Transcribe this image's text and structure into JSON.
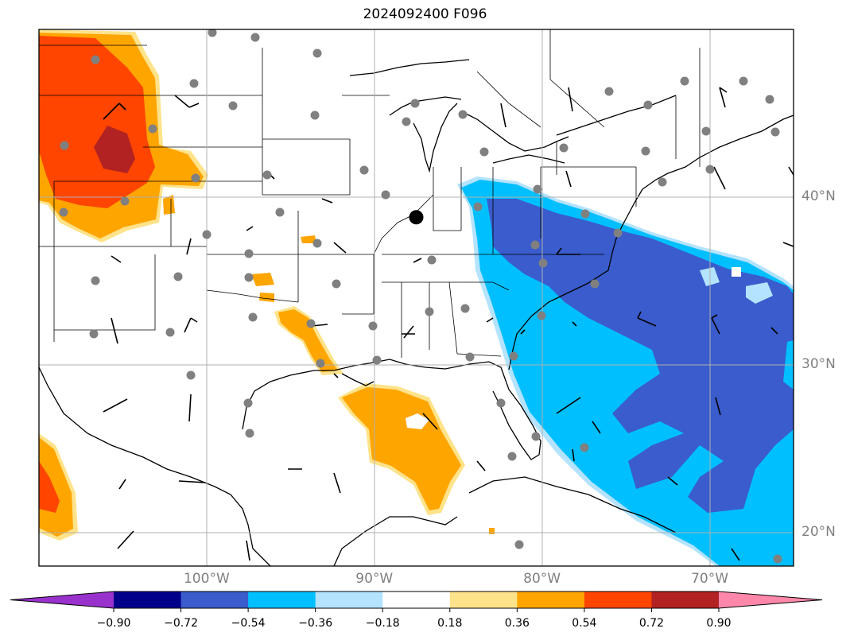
{
  "title": "2024092400 F096",
  "map": {
    "extent_lon": [
      -110,
      -65
    ],
    "extent_lat": [
      18,
      50
    ],
    "latitude_labels": [
      {
        "value": 40,
        "label": "40°N"
      },
      {
        "value": 30,
        "label": "30°N"
      },
      {
        "value": 20,
        "label": "20°N"
      }
    ],
    "longitude_labels": [
      {
        "value": -100,
        "label": "100°W"
      },
      {
        "value": -90,
        "label": "90°W"
      },
      {
        "value": -80,
        "label": "80°W"
      },
      {
        "value": -70,
        "label": "70°W"
      }
    ],
    "gridlines": true,
    "highlight_point": {
      "lon": -87.5,
      "lat": 38.8
    },
    "colors": {
      "coast": "#000000",
      "station": "#808080",
      "grid": "#b0b0b0"
    }
  },
  "colorbar": {
    "levels": [
      -0.9,
      -0.72,
      -0.54,
      -0.36,
      -0.18,
      0.18,
      0.36,
      0.54,
      0.72,
      0.9
    ],
    "tick_labels": [
      "−0.90",
      "−0.72",
      "−0.54",
      "−0.36",
      "−0.18",
      "0.18",
      "0.36",
      "0.54",
      "0.72",
      "0.90"
    ],
    "colors": [
      "#9932cc",
      "#00008b",
      "#3a5ccc",
      "#00bfff",
      "#b3e3ff",
      "#ffffff",
      "#ffe38a",
      "#ffa500",
      "#ff4500",
      "#b22222",
      "#ff88aa"
    ],
    "extend": "both"
  }
}
